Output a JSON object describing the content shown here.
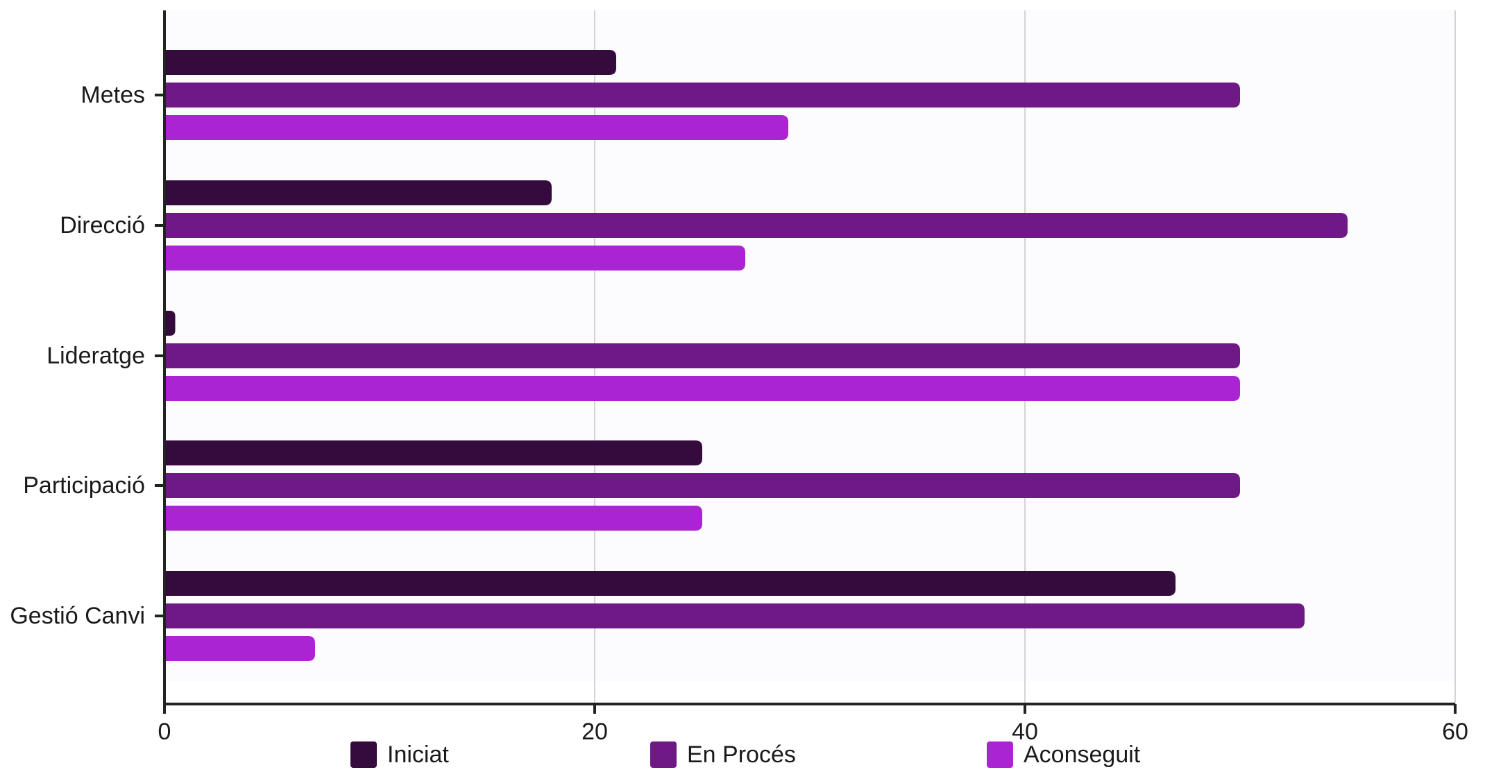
{
  "chart_data": {
    "type": "bar",
    "orientation": "horizontal",
    "categories": [
      "Metes",
      "Direcció",
      "Lideratge",
      "Participació",
      "Gestió Canvi"
    ],
    "series": [
      {
        "name": "Iniciat",
        "values": [
          21,
          18,
          0.5,
          25,
          47
        ]
      },
      {
        "name": "En Procés",
        "values": [
          50,
          55,
          50,
          50,
          53
        ]
      },
      {
        "name": "Aconseguit",
        "values": [
          29,
          27,
          50,
          25,
          7
        ]
      }
    ],
    "title": "",
    "xlabel": "",
    "ylabel": "",
    "xlim": [
      0,
      60
    ],
    "xticks": [
      0,
      20,
      40,
      60
    ],
    "grid": "vertical",
    "legend_position": "bottom",
    "colors": {
      "Iniciat": "#350a3d",
      "En Procés": "#6e1985",
      "Aconseguit": "#aa24d4",
      "gridline": "#d4d4d4",
      "axis": "#222222",
      "plot_background": "#fcfbfe"
    }
  }
}
